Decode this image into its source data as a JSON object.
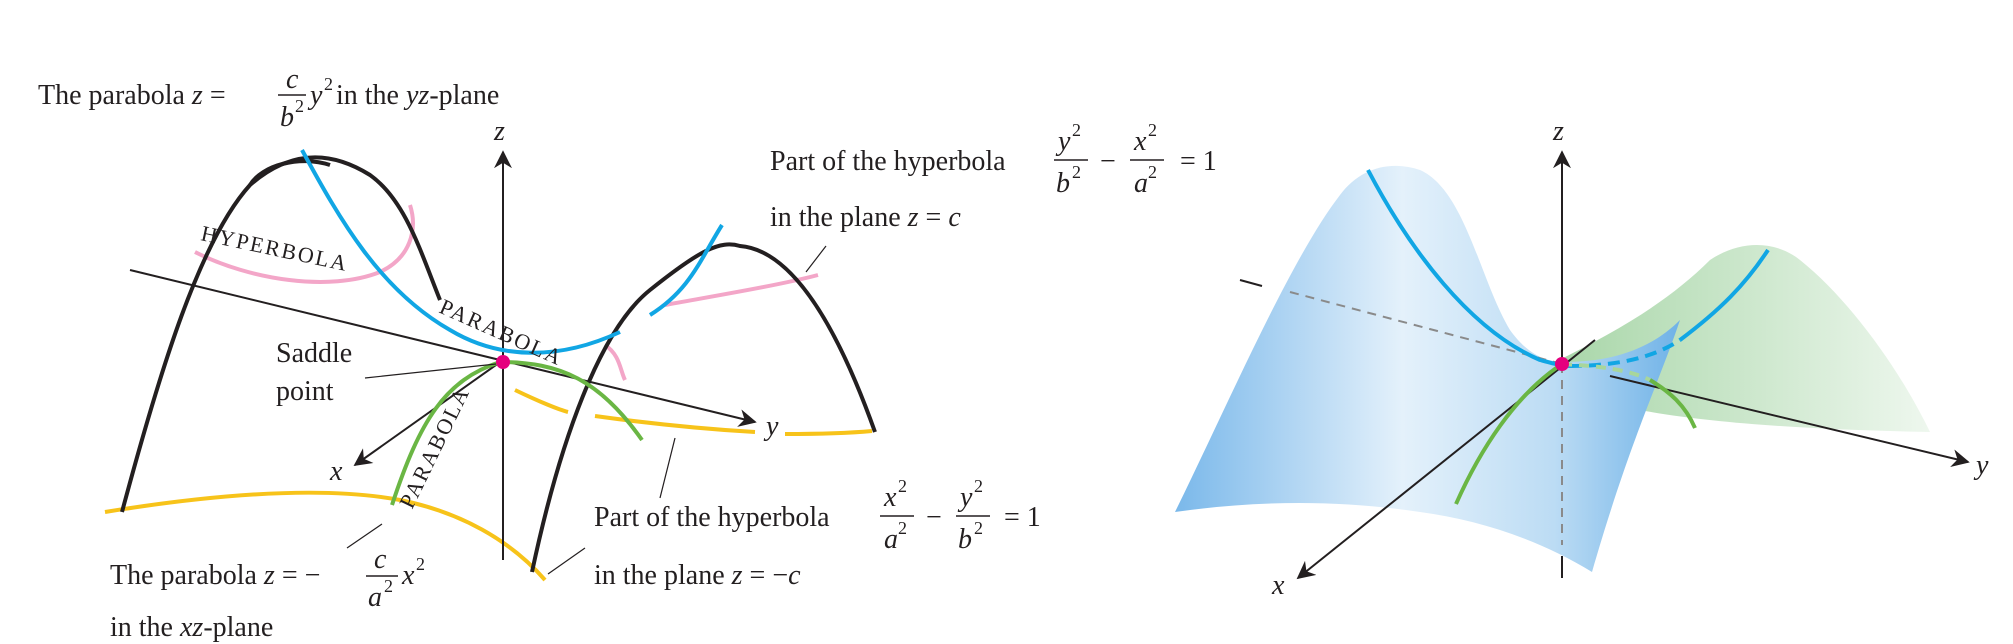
{
  "colors": {
    "hyperbola_upper": "#f3a6c8",
    "hyperbola_lower": "#f7c31a",
    "parabola_yz": "#11a6e4",
    "parabola_xz": "#6ab644",
    "saddle_point": "#e5007e",
    "surface_blue": "#8cc5ef",
    "surface_green": "#b7ddb7",
    "axis": "#231f20"
  },
  "left": {
    "axis_z": "z",
    "axis_y": "y",
    "axis_x": "x",
    "curve_label_hyperbola": "HYPERBOLA",
    "curve_label_parabola_yz": "PARABOLA",
    "curve_label_parabola_xz": "PARABOLA",
    "saddle_label_1": "Saddle",
    "saddle_label_2": "point",
    "ann_parabola_yz": {
      "prefix": "The parabola ",
      "var": "z",
      "eq": " = ",
      "num": "c",
      "den": "b",
      "den_exp": "2",
      "tail_var": "y",
      "tail_exp": "2",
      "suffix_1": " in the ",
      "suffix_var": "yz",
      "suffix_2": "-plane"
    },
    "ann_hyperbola_upper": {
      "prefix": "Part of the hyperbola ",
      "n1": "y",
      "n1e": "2",
      "d1": "b",
      "d1e": "2",
      "minus": "−",
      "n2": "x",
      "n2e": "2",
      "d2": "a",
      "d2e": "2",
      "rhs": "= 1",
      "line2_a": "in the plane ",
      "line2_var": "z",
      "line2_b": " = ",
      "line2_c": "c"
    },
    "ann_hyperbola_lower": {
      "prefix": "Part of the hyperbola ",
      "n1": "x",
      "n1e": "2",
      "d1": "a",
      "d1e": "2",
      "minus": "−",
      "n2": "y",
      "n2e": "2",
      "d2": "b",
      "d2e": "2",
      "rhs": "= 1",
      "line2_a": "in the plane ",
      "line2_var": "z",
      "line2_b": " = −",
      "line2_c": "c"
    },
    "ann_parabola_xz": {
      "prefix": "The parabola ",
      "var": "z",
      "eq": " = −",
      "num": "c",
      "den": "a",
      "den_exp": "2",
      "tail_var": "x",
      "tail_exp": "2",
      "line2_a": "in the ",
      "line2_var": "xz",
      "line2_b": "-plane"
    }
  },
  "right": {
    "axis_z": "z",
    "axis_y": "y",
    "axis_x": "x"
  }
}
